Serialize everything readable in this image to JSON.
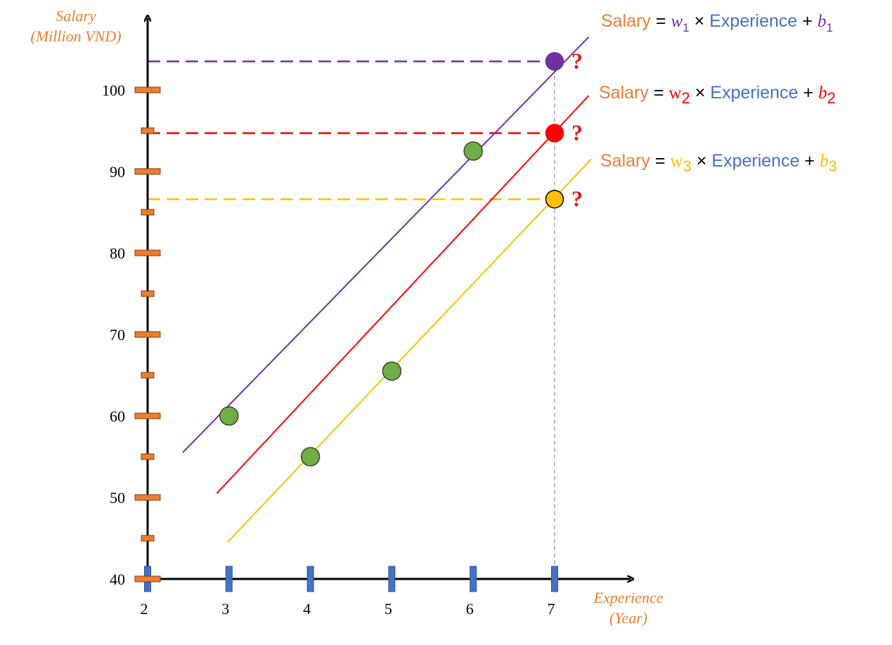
{
  "chart_data": {
    "type": "scatter",
    "ylabel": [
      "Salary",
      "(Million VND)"
    ],
    "xlabel": [
      "Experience",
      "(Year)"
    ],
    "xlim": [
      2,
      7.5
    ],
    "ylim": [
      40,
      105
    ],
    "x_ticks": [
      2,
      3,
      4,
      5,
      6,
      7
    ],
    "y_major_ticks": [
      40,
      50,
      60,
      70,
      80,
      90,
      100
    ],
    "y_minor_ticks": [
      45,
      55,
      65,
      75,
      85,
      95
    ],
    "points": [
      {
        "x": 3,
        "y": 60
      },
      {
        "x": 4,
        "y": 55
      },
      {
        "x": 5,
        "y": 65.5
      },
      {
        "x": 6,
        "y": 92.5
      }
    ],
    "lines": [
      {
        "x": [
          2.43,
          7.42
        ],
        "y": [
          55.5,
          106.5
        ]
      },
      {
        "x": [
          2.85,
          7.42
        ],
        "y": [
          50.5,
          99.3
        ]
      },
      {
        "x": [
          2.98,
          7.45
        ],
        "y": [
          44.5,
          91.5
        ]
      }
    ],
    "predictions": [
      {
        "x": 7,
        "y": 103.5,
        "label": "?"
      },
      {
        "x": 7,
        "y": 94.7,
        "label": "?"
      },
      {
        "x": 7,
        "y": 86.6,
        "label": "?"
      }
    ],
    "equations": [
      {
        "lhs": "Salary",
        "eq": "=",
        "w": "w",
        "w_sub": "1",
        "times": "×",
        "feature": "Experience",
        "plus": "+",
        "b": "b",
        "b_sub": "1"
      },
      {
        "lhs": "Salary",
        "eq": "=",
        "w": "w",
        "w_sub": "2",
        "times": "×",
        "feature": "Experience",
        "plus": "+",
        "b": "b",
        "b_sub": "2"
      },
      {
        "lhs": "Salary",
        "eq": "=",
        "w": "w",
        "w_sub": "3",
        "times": "×",
        "feature": "Experience",
        "plus": "+",
        "b": "b",
        "b_sub": "3"
      }
    ]
  },
  "colors": {
    "axis_label": "#ED7D31",
    "feature": "#4472C4",
    "point": "#70AD47",
    "line1": "#7030A0",
    "line2": "#FF0000",
    "line3": "#FFC000",
    "y_tick_mark": "#ED7D31",
    "x_tick_mark": "#4472C4",
    "question": "#E31A1C"
  }
}
